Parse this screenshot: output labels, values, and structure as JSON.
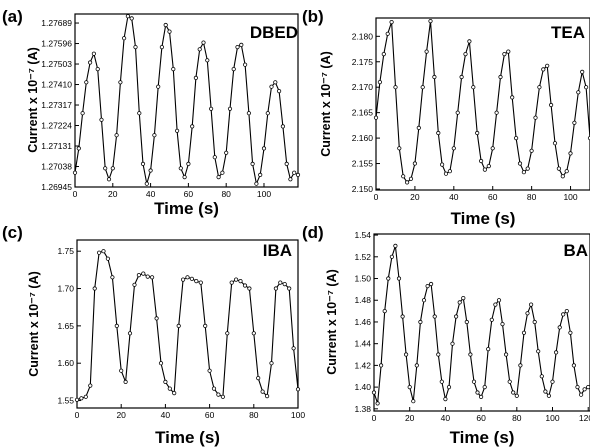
{
  "chart_data": [
    {
      "type": "line",
      "panel_label": "(a)",
      "name": "DBED",
      "xlabel": "Time (s)",
      "ylabel": "Current x 10⁻⁷ (A)",
      "xlim": [
        0,
        118
      ],
      "ylim": [
        1.26945,
        1.2773
      ],
      "xticks": [
        "0",
        "20",
        "40",
        "60",
        "80",
        "100"
      ],
      "yticks": [
        "1.26945",
        "1.27038",
        "1.27131",
        "1.27224",
        "1.27317",
        "1.27410",
        "1.27503",
        "1.27596",
        "1.27689"
      ],
      "grid": false,
      "series": [
        {
          "color": "#000000",
          "x": [
            0,
            2,
            4,
            6,
            8,
            10,
            12,
            14,
            16,
            18,
            20,
            22,
            24,
            26,
            28,
            30,
            32,
            34,
            36,
            38,
            40,
            42,
            44,
            46,
            48,
            50,
            52,
            54,
            56,
            58,
            60,
            62,
            64,
            66,
            68,
            70,
            72,
            74,
            76,
            78,
            80,
            82,
            84,
            86,
            88,
            90,
            92,
            94,
            96,
            98,
            100,
            102,
            104,
            106,
            108,
            110,
            112,
            114,
            116,
            118
          ],
          "values": [
            1.2701,
            1.2712,
            1.2728,
            1.2742,
            1.2751,
            1.2755,
            1.2748,
            1.2725,
            1.2703,
            1.2698,
            1.2703,
            1.2718,
            1.2742,
            1.2762,
            1.2772,
            1.2771,
            1.2758,
            1.2728,
            1.2705,
            1.2696,
            1.2702,
            1.2718,
            1.274,
            1.2758,
            1.2768,
            1.2765,
            1.2748,
            1.272,
            1.2703,
            1.2699,
            1.2705,
            1.2722,
            1.2744,
            1.2757,
            1.276,
            1.2752,
            1.273,
            1.2708,
            1.2699,
            1.2701,
            1.271,
            1.273,
            1.2748,
            1.2758,
            1.2759,
            1.275,
            1.2728,
            1.2705,
            1.2696,
            1.27,
            1.2712,
            1.2728,
            1.274,
            1.2742,
            1.2738,
            1.2722,
            1.2705,
            1.2698,
            1.2701,
            1.27
          ]
        }
      ]
    },
    {
      "type": "line",
      "panel_label": "(b)",
      "name": "TEA",
      "xlabel": "Time (s)",
      "ylabel": "Current x 10⁻⁷ (A)",
      "xlim": [
        0,
        110
      ],
      "ylim": [
        2.1498,
        2.1836
      ],
      "xticks": [
        "0",
        "20",
        "40",
        "60",
        "80",
        "100"
      ],
      "yticks": [
        "2.150",
        "2.155",
        "2.160",
        "2.165",
        "2.170",
        "2.175",
        "2.180"
      ],
      "grid": false,
      "series": [
        {
          "color": "#000000",
          "x": [
            0,
            2,
            4,
            6,
            8,
            10,
            12,
            14,
            16,
            18,
            20,
            22,
            24,
            26,
            28,
            30,
            32,
            34,
            36,
            38,
            40,
            42,
            44,
            46,
            48,
            50,
            52,
            54,
            56,
            58,
            60,
            62,
            64,
            66,
            68,
            70,
            72,
            74,
            76,
            78,
            80,
            82,
            84,
            86,
            88,
            90,
            92,
            94,
            96,
            98,
            100,
            102,
            104,
            106,
            108,
            110
          ],
          "values": [
            2.164,
            2.171,
            2.1765,
            2.1805,
            2.1828,
            2.17,
            2.158,
            2.1525,
            2.1513,
            2.152,
            2.155,
            2.162,
            2.17,
            2.177,
            2.183,
            2.172,
            2.161,
            2.1548,
            2.153,
            2.1535,
            2.158,
            2.165,
            2.172,
            2.1765,
            2.179,
            2.17,
            2.161,
            2.1555,
            2.1538,
            2.1545,
            2.158,
            2.165,
            2.172,
            2.1765,
            2.177,
            2.168,
            2.16,
            2.155,
            2.1533,
            2.154,
            2.1575,
            2.164,
            2.17,
            2.1735,
            2.1742,
            2.1665,
            2.159,
            2.154,
            2.1525,
            2.1535,
            2.157,
            2.163,
            2.169,
            2.173,
            2.17,
            2.16
          ]
        }
      ]
    },
    {
      "type": "line",
      "panel_label": "(c)",
      "name": "IBA",
      "xlabel": "Time (s)",
      "ylabel": "Current x 10⁻⁷ (A)",
      "xlim": [
        0,
        100
      ],
      "ylim": [
        1.54,
        1.765
      ],
      "xticks": [
        "0",
        "20",
        "40",
        "60",
        "80",
        "100"
      ],
      "yticks": [
        "1.55",
        "1.60",
        "1.65",
        "1.70",
        "1.75"
      ],
      "grid": false,
      "series": [
        {
          "color": "#000000",
          "x": [
            0,
            2,
            4,
            6,
            8,
            10,
            12,
            14,
            16,
            18,
            20,
            22,
            24,
            26,
            28,
            30,
            32,
            34,
            36,
            38,
            40,
            42,
            44,
            46,
            48,
            50,
            52,
            54,
            56,
            58,
            60,
            62,
            64,
            66,
            68,
            70,
            72,
            74,
            76,
            78,
            80,
            82,
            84,
            86,
            88,
            90,
            92,
            94,
            96,
            98,
            100
          ],
          "values": [
            1.551,
            1.553,
            1.555,
            1.57,
            1.7,
            1.748,
            1.75,
            1.74,
            1.715,
            1.65,
            1.59,
            1.575,
            1.64,
            1.705,
            1.718,
            1.72,
            1.716,
            1.715,
            1.66,
            1.6,
            1.575,
            1.566,
            1.56,
            1.65,
            1.712,
            1.715,
            1.713,
            1.71,
            1.708,
            1.65,
            1.59,
            1.566,
            1.558,
            1.555,
            1.64,
            1.708,
            1.712,
            1.71,
            1.704,
            1.7,
            1.64,
            1.58,
            1.562,
            1.556,
            1.6,
            1.7,
            1.708,
            1.706,
            1.7,
            1.62,
            1.565
          ]
        }
      ]
    },
    {
      "type": "line",
      "panel_label": "(d)",
      "name": "BA",
      "xlabel": "Time (s)",
      "ylabel": "Current x 10⁻⁷ (A)",
      "xlim": [
        0,
        121
      ],
      "ylim": [
        1.378,
        1.541
      ],
      "xticks": [
        "0",
        "20",
        "40",
        "60",
        "80",
        "100",
        "120"
      ],
      "yticks": [
        "1.38",
        "1.40",
        "1.42",
        "1.44",
        "1.46",
        "1.48",
        "1.50",
        "1.52",
        "1.54"
      ],
      "grid": false,
      "series": [
        {
          "color": "#000000",
          "x": [
            0,
            2,
            4,
            6,
            8,
            10,
            12,
            14,
            16,
            18,
            20,
            22,
            24,
            26,
            28,
            30,
            32,
            34,
            36,
            38,
            40,
            42,
            44,
            46,
            48,
            50,
            52,
            54,
            56,
            58,
            60,
            62,
            64,
            66,
            68,
            70,
            72,
            74,
            76,
            78,
            80,
            82,
            84,
            86,
            88,
            90,
            92,
            94,
            96,
            98,
            100,
            102,
            104,
            106,
            108,
            110,
            112,
            114,
            116,
            118,
            120
          ],
          "values": [
            1.395,
            1.385,
            1.42,
            1.47,
            1.5,
            1.52,
            1.53,
            1.5,
            1.465,
            1.43,
            1.4,
            1.387,
            1.42,
            1.46,
            1.48,
            1.493,
            1.495,
            1.465,
            1.43,
            1.405,
            1.389,
            1.4,
            1.44,
            1.465,
            1.478,
            1.482,
            1.46,
            1.43,
            1.405,
            1.395,
            1.391,
            1.4,
            1.435,
            1.462,
            1.476,
            1.48,
            1.458,
            1.43,
            1.405,
            1.395,
            1.392,
            1.42,
            1.45,
            1.468,
            1.476,
            1.46,
            1.433,
            1.41,
            1.396,
            1.392,
            1.405,
            1.432,
            1.455,
            1.467,
            1.47,
            1.45,
            1.42,
            1.4,
            1.393,
            1.398,
            1.4
          ]
        }
      ]
    }
  ]
}
